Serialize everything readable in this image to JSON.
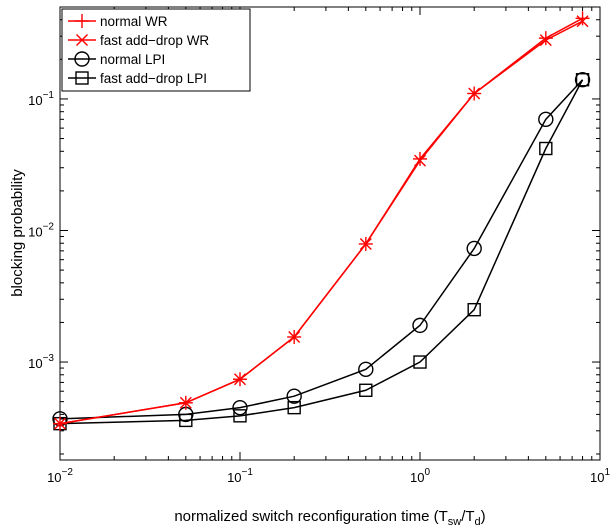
{
  "chart_data": {
    "type": "line",
    "xscale": "log",
    "yscale": "log",
    "xlim": [
      0.01,
      10
    ],
    "ylim": [
      0.00018,
      0.5
    ],
    "xlabel": "normalized switch reconfiguration time (T",
    "xlabel_sub1": "sw",
    "xlabel_mid": "/T",
    "xlabel_sub2": "d",
    "xlabel_end": ")",
    "ylabel": "blocking probability",
    "x_ticks": [
      {
        "value": 0.01,
        "base": "10",
        "exp": "−2"
      },
      {
        "value": 0.1,
        "base": "10",
        "exp": "−1"
      },
      {
        "value": 1,
        "base": "10",
        "exp": "0"
      },
      {
        "value": 10,
        "base": "10",
        "exp": "1"
      }
    ],
    "y_ticks": [
      {
        "value": 0.001,
        "base": "10",
        "exp": "−3"
      },
      {
        "value": 0.01,
        "base": "10",
        "exp": "−2"
      },
      {
        "value": 0.1,
        "base": "10",
        "exp": "−1"
      }
    ],
    "grid": false,
    "legend_position": "top-left",
    "series": [
      {
        "name": "normal WR",
        "color": "#ff0000",
        "marker": "plus",
        "x": [
          0.01,
          0.05,
          0.1,
          0.2,
          0.5,
          1,
          2,
          5,
          8
        ],
        "y": [
          0.00034,
          0.00049,
          0.00074,
          0.00155,
          0.0079,
          0.035,
          0.11,
          0.29,
          0.41
        ]
      },
      {
        "name": "fast add−drop WR",
        "color": "#ff0000",
        "marker": "x",
        "x": [
          0.01,
          0.05,
          0.1,
          0.2,
          0.5,
          1,
          2,
          5,
          8
        ],
        "y": [
          0.00034,
          0.00049,
          0.00074,
          0.00155,
          0.0079,
          0.034,
          0.11,
          0.28,
          0.39
        ]
      },
      {
        "name": "normal LPI",
        "color": "#000000",
        "marker": "circle",
        "x": [
          0.01,
          0.05,
          0.1,
          0.2,
          0.5,
          1,
          2,
          5,
          8
        ],
        "y": [
          0.00037,
          0.0004,
          0.00045,
          0.00055,
          0.00088,
          0.0019,
          0.0073,
          0.07,
          0.14
        ]
      },
      {
        "name": "fast add−drop LPI",
        "color": "#000000",
        "marker": "square",
        "x": [
          0.01,
          0.05,
          0.1,
          0.2,
          0.5,
          1,
          2,
          5,
          8
        ],
        "y": [
          0.00034,
          0.00036,
          0.00039,
          0.00045,
          0.00061,
          0.001,
          0.0025,
          0.042,
          0.14
        ]
      }
    ]
  }
}
